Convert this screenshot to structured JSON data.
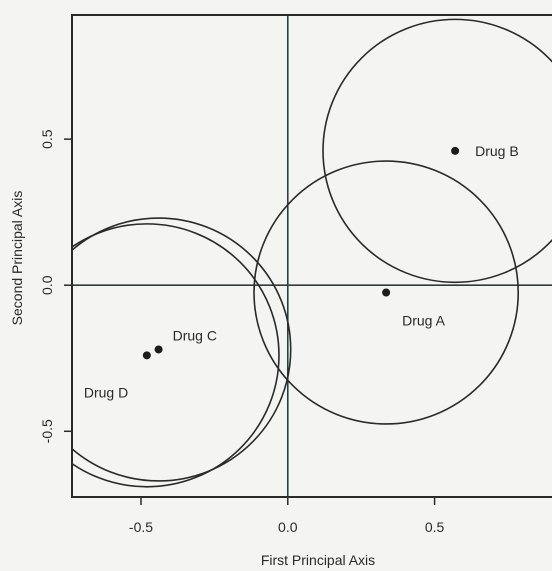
{
  "chart_data": {
    "type": "scatter",
    "xlabel": "First Principal Axis",
    "ylabel": "Second Principal Axis",
    "xlim": [
      -0.735,
      0.9
    ],
    "ylim": [
      -0.725,
      0.925
    ],
    "xticks": [
      {
        "value": -0.5,
        "label": "-0.5"
      },
      {
        "value": 0.0,
        "label": "0.0"
      },
      {
        "value": 0.5,
        "label": "0.5"
      }
    ],
    "yticks": [
      {
        "value": -0.5,
        "label": "-0.5"
      },
      {
        "value": 0.0,
        "label": "0.0"
      },
      {
        "value": 0.5,
        "label": "0.5"
      }
    ],
    "reference_lines": {
      "x": 0.0,
      "y": 0.0
    },
    "points": [
      {
        "label": "Drug A",
        "x": 0.335,
        "y": -0.025,
        "circle_radius": 0.45,
        "label_anchor": "below-right"
      },
      {
        "label": "Drug B",
        "x": 0.57,
        "y": 0.46,
        "circle_radius": 0.45,
        "label_anchor": "right"
      },
      {
        "label": "Drug C",
        "x": -0.44,
        "y": -0.22,
        "circle_radius": 0.45,
        "label_anchor": "upper-right"
      },
      {
        "label": "Drug D",
        "x": -0.48,
        "y": -0.24,
        "circle_radius": 0.45,
        "label_anchor": "lower-left"
      }
    ],
    "grid": false,
    "legend": "none"
  }
}
